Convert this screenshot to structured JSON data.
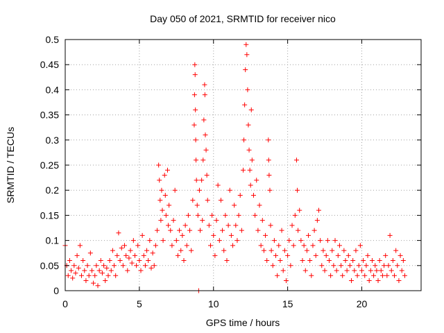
{
  "chart_data": {
    "type": "scatter",
    "title": "Day 050 of 2021, SRMTID for receiver nico",
    "xlabel": "GPS time / hours",
    "ylabel": "SRMTID / TECUs",
    "xlim": [
      0,
      24
    ],
    "ylim": [
      0,
      0.5
    ],
    "xticks": [
      0,
      5,
      10,
      15,
      20
    ],
    "xtick_labels": [
      "0",
      "5",
      "10",
      "15",
      "20"
    ],
    "yticks": [
      0,
      0.05,
      0.1,
      0.15,
      0.2,
      0.25,
      0.3,
      0.35,
      0.4,
      0.45,
      0.5
    ],
    "ytick_labels": [
      "0",
      "0.05",
      "0.1",
      "0.15",
      "0.2",
      "0.25",
      "0.3",
      "0.35",
      "0.4",
      "0.45",
      "0.5"
    ],
    "grid": true,
    "marker": "+",
    "color": "#ff0000",
    "series": [
      {
        "name": "SRMTID",
        "points": [
          [
            0.0,
            0.09
          ],
          [
            0.1,
            0.05
          ],
          [
            0.2,
            0.03
          ],
          [
            0.3,
            0.06
          ],
          [
            0.4,
            0.04
          ],
          [
            0.5,
            0.025
          ],
          [
            0.6,
            0.05
          ],
          [
            0.7,
            0.035
          ],
          [
            0.8,
            0.07
          ],
          [
            0.9,
            0.045
          ],
          [
            1.0,
            0.09
          ],
          [
            1.1,
            0.03
          ],
          [
            1.2,
            0.06
          ],
          [
            1.3,
            0.04
          ],
          [
            1.4,
            0.02
          ],
          [
            1.5,
            0.05
          ],
          [
            1.6,
            0.03
          ],
          [
            1.7,
            0.075
          ],
          [
            1.8,
            0.04
          ],
          [
            1.9,
            0.015
          ],
          [
            2.0,
            0.03
          ],
          [
            2.1,
            0.05
          ],
          [
            2.2,
            0.01
          ],
          [
            2.3,
            0.04
          ],
          [
            2.4,
            0.06
          ],
          [
            2.5,
            0.035
          ],
          [
            2.6,
            0.05
          ],
          [
            2.7,
            0.02
          ],
          [
            2.8,
            0.045
          ],
          [
            2.9,
            0.03
          ],
          [
            3.0,
            0.06
          ],
          [
            3.1,
            0.04
          ],
          [
            3.2,
            0.08
          ],
          [
            3.3,
            0.05
          ],
          [
            3.4,
            0.03
          ],
          [
            3.5,
            0.07
          ],
          [
            3.6,
            0.115
          ],
          [
            3.7,
            0.06
          ],
          [
            3.8,
            0.085
          ],
          [
            3.9,
            0.05
          ],
          [
            4.0,
            0.09
          ],
          [
            4.1,
            0.07
          ],
          [
            4.2,
            0.04
          ],
          [
            4.3,
            0.065
          ],
          [
            4.4,
            0.08
          ],
          [
            4.5,
            0.055
          ],
          [
            4.6,
            0.1
          ],
          [
            4.7,
            0.07
          ],
          [
            4.8,
            0.05
          ],
          [
            4.9,
            0.09
          ],
          [
            5.0,
            0.06
          ],
          [
            5.1,
            0.04
          ],
          [
            5.2,
            0.11
          ],
          [
            5.3,
            0.07
          ],
          [
            5.4,
            0.05
          ],
          [
            5.5,
            0.08
          ],
          [
            5.6,
            0.06
          ],
          [
            5.7,
            0.1
          ],
          [
            5.8,
            0.045
          ],
          [
            5.9,
            0.075
          ],
          [
            6.0,
            0.05
          ],
          [
            6.1,
            0.09
          ],
          [
            6.2,
            0.12
          ],
          [
            6.3,
            0.25
          ],
          [
            6.35,
            0.22
          ],
          [
            6.4,
            0.18
          ],
          [
            6.45,
            0.14
          ],
          [
            6.5,
            0.2
          ],
          [
            6.55,
            0.16
          ],
          [
            6.6,
            0.1
          ],
          [
            6.7,
            0.23
          ],
          [
            6.75,
            0.19
          ],
          [
            6.8,
            0.15
          ],
          [
            6.9,
            0.24
          ],
          [
            6.95,
            0.13
          ],
          [
            7.0,
            0.17
          ],
          [
            7.1,
            0.12
          ],
          [
            7.2,
            0.09
          ],
          [
            7.3,
            0.14
          ],
          [
            7.4,
            0.2
          ],
          [
            7.5,
            0.1
          ],
          [
            7.6,
            0.07
          ],
          [
            7.7,
            0.12
          ],
          [
            7.8,
            0.08
          ],
          [
            7.9,
            0.11
          ],
          [
            8.0,
            0.06
          ],
          [
            8.1,
            0.13
          ],
          [
            8.2,
            0.09
          ],
          [
            8.3,
            0.15
          ],
          [
            8.4,
            0.12
          ],
          [
            8.5,
            0.08
          ],
          [
            8.6,
            0.18
          ],
          [
            8.7,
            0.33
          ],
          [
            8.72,
            0.39
          ],
          [
            8.74,
            0.45
          ],
          [
            8.76,
            0.43
          ],
          [
            8.78,
            0.36
          ],
          [
            8.8,
            0.3
          ],
          [
            8.82,
            0.26
          ],
          [
            8.85,
            0.22
          ],
          [
            8.9,
            0.17
          ],
          [
            8.95,
            0.15
          ],
          [
            9.0,
            0.0
          ],
          [
            9.05,
            0.2
          ],
          [
            9.1,
            0.12
          ],
          [
            9.2,
            0.22
          ],
          [
            9.25,
            0.14
          ],
          [
            9.3,
            0.26
          ],
          [
            9.35,
            0.34
          ],
          [
            9.4,
            0.41
          ],
          [
            9.42,
            0.39
          ],
          [
            9.45,
            0.31
          ],
          [
            9.5,
            0.28
          ],
          [
            9.55,
            0.23
          ],
          [
            9.6,
            0.18
          ],
          [
            9.7,
            0.13
          ],
          [
            9.8,
            0.09
          ],
          [
            9.9,
            0.15
          ],
          [
            10.0,
            0.11
          ],
          [
            10.1,
            0.07
          ],
          [
            10.2,
            0.14
          ],
          [
            10.3,
            0.21
          ],
          [
            10.4,
            0.1
          ],
          [
            10.5,
            0.18
          ],
          [
            10.6,
            0.12
          ],
          [
            10.7,
            0.08
          ],
          [
            10.8,
            0.15
          ],
          [
            10.9,
            0.06
          ],
          [
            11.0,
            0.13
          ],
          [
            11.1,
            0.2
          ],
          [
            11.2,
            0.11
          ],
          [
            11.3,
            0.09
          ],
          [
            11.4,
            0.17
          ],
          [
            11.5,
            0.13
          ],
          [
            11.6,
            0.1
          ],
          [
            11.7,
            0.15
          ],
          [
            11.8,
            0.19
          ],
          [
            11.9,
            0.12
          ],
          [
            12.0,
            0.24
          ],
          [
            12.05,
            0.3
          ],
          [
            12.1,
            0.37
          ],
          [
            12.15,
            0.44
          ],
          [
            12.2,
            0.49
          ],
          [
            12.25,
            0.47
          ],
          [
            12.3,
            0.4
          ],
          [
            12.35,
            0.33
          ],
          [
            12.4,
            0.28
          ],
          [
            12.45,
            0.24
          ],
          [
            12.5,
            0.21
          ],
          [
            12.55,
            0.36
          ],
          [
            12.6,
            0.26
          ],
          [
            12.7,
            0.19
          ],
          [
            12.8,
            0.15
          ],
          [
            12.9,
            0.22
          ],
          [
            13.0,
            0.12
          ],
          [
            13.1,
            0.17
          ],
          [
            13.2,
            0.09
          ],
          [
            13.3,
            0.14
          ],
          [
            13.4,
            0.08
          ],
          [
            13.5,
            0.11
          ],
          [
            13.6,
            0.06
          ],
          [
            13.7,
            0.3
          ],
          [
            13.72,
            0.26
          ],
          [
            13.75,
            0.23
          ],
          [
            13.8,
            0.2
          ],
          [
            13.85,
            0.13
          ],
          [
            13.9,
            0.08
          ],
          [
            14.0,
            0.05
          ],
          [
            14.1,
            0.1
          ],
          [
            14.2,
            0.07
          ],
          [
            14.3,
            0.03
          ],
          [
            14.4,
            0.09
          ],
          [
            14.5,
            0.06
          ],
          [
            14.6,
            0.12
          ],
          [
            14.7,
            0.04
          ],
          [
            14.8,
            0.08
          ],
          [
            14.9,
            0.02
          ],
          [
            15.0,
            0.07
          ],
          [
            15.1,
            0.1
          ],
          [
            15.2,
            0.05
          ],
          [
            15.3,
            0.13
          ],
          [
            15.4,
            0.09
          ],
          [
            15.5,
            0.15
          ],
          [
            15.6,
            0.26
          ],
          [
            15.65,
            0.2
          ],
          [
            15.7,
            0.12
          ],
          [
            15.8,
            0.16
          ],
          [
            15.9,
            0.1
          ],
          [
            16.0,
            0.06
          ],
          [
            16.1,
            0.09
          ],
          [
            16.2,
            0.04
          ],
          [
            16.3,
            0.08
          ],
          [
            16.4,
            0.11
          ],
          [
            16.5,
            0.06
          ],
          [
            16.6,
            0.03
          ],
          [
            16.7,
            0.09
          ],
          [
            16.8,
            0.12
          ],
          [
            16.9,
            0.07
          ],
          [
            17.0,
            0.14
          ],
          [
            17.1,
            0.16
          ],
          [
            17.2,
            0.1
          ],
          [
            17.3,
            0.05
          ],
          [
            17.4,
            0.08
          ],
          [
            17.5,
            0.04
          ],
          [
            17.6,
            0.07
          ],
          [
            17.7,
            0.1
          ],
          [
            17.8,
            0.06
          ],
          [
            17.9,
            0.03
          ],
          [
            18.0,
            0.08
          ],
          [
            18.1,
            0.05
          ],
          [
            18.2,
            0.1
          ],
          [
            18.3,
            0.04
          ],
          [
            18.4,
            0.07
          ],
          [
            18.5,
            0.09
          ],
          [
            18.6,
            0.05
          ],
          [
            18.7,
            0.03
          ],
          [
            18.8,
            0.08
          ],
          [
            18.9,
            0.06
          ],
          [
            19.0,
            0.04
          ],
          [
            19.1,
            0.07
          ],
          [
            19.2,
            0.05
          ],
          [
            19.3,
            0.02
          ],
          [
            19.4,
            0.06
          ],
          [
            19.5,
            0.04
          ],
          [
            19.6,
            0.08
          ],
          [
            19.7,
            0.03
          ],
          [
            19.8,
            0.05
          ],
          [
            19.9,
            0.09
          ],
          [
            20.0,
            0.04
          ],
          [
            20.1,
            0.06
          ],
          [
            20.2,
            0.03
          ],
          [
            20.3,
            0.05
          ],
          [
            20.4,
            0.07
          ],
          [
            20.5,
            0.02
          ],
          [
            20.6,
            0.04
          ],
          [
            20.7,
            0.06
          ],
          [
            20.8,
            0.03
          ],
          [
            20.9,
            0.05
          ],
          [
            21.0,
            0.04
          ],
          [
            21.1,
            0.02
          ],
          [
            21.2,
            0.06
          ],
          [
            21.3,
            0.04
          ],
          [
            21.4,
            0.03
          ],
          [
            21.5,
            0.05
          ],
          [
            21.6,
            0.07
          ],
          [
            21.7,
            0.03
          ],
          [
            21.8,
            0.05
          ],
          [
            21.9,
            0.11
          ],
          [
            22.0,
            0.04
          ],
          [
            22.1,
            0.06
          ],
          [
            22.2,
            0.03
          ],
          [
            22.3,
            0.08
          ],
          [
            22.4,
            0.05
          ],
          [
            22.5,
            0.02
          ],
          [
            22.6,
            0.07
          ],
          [
            22.7,
            0.04
          ],
          [
            22.8,
            0.06
          ],
          [
            22.9,
            0.03
          ]
        ]
      }
    ]
  }
}
